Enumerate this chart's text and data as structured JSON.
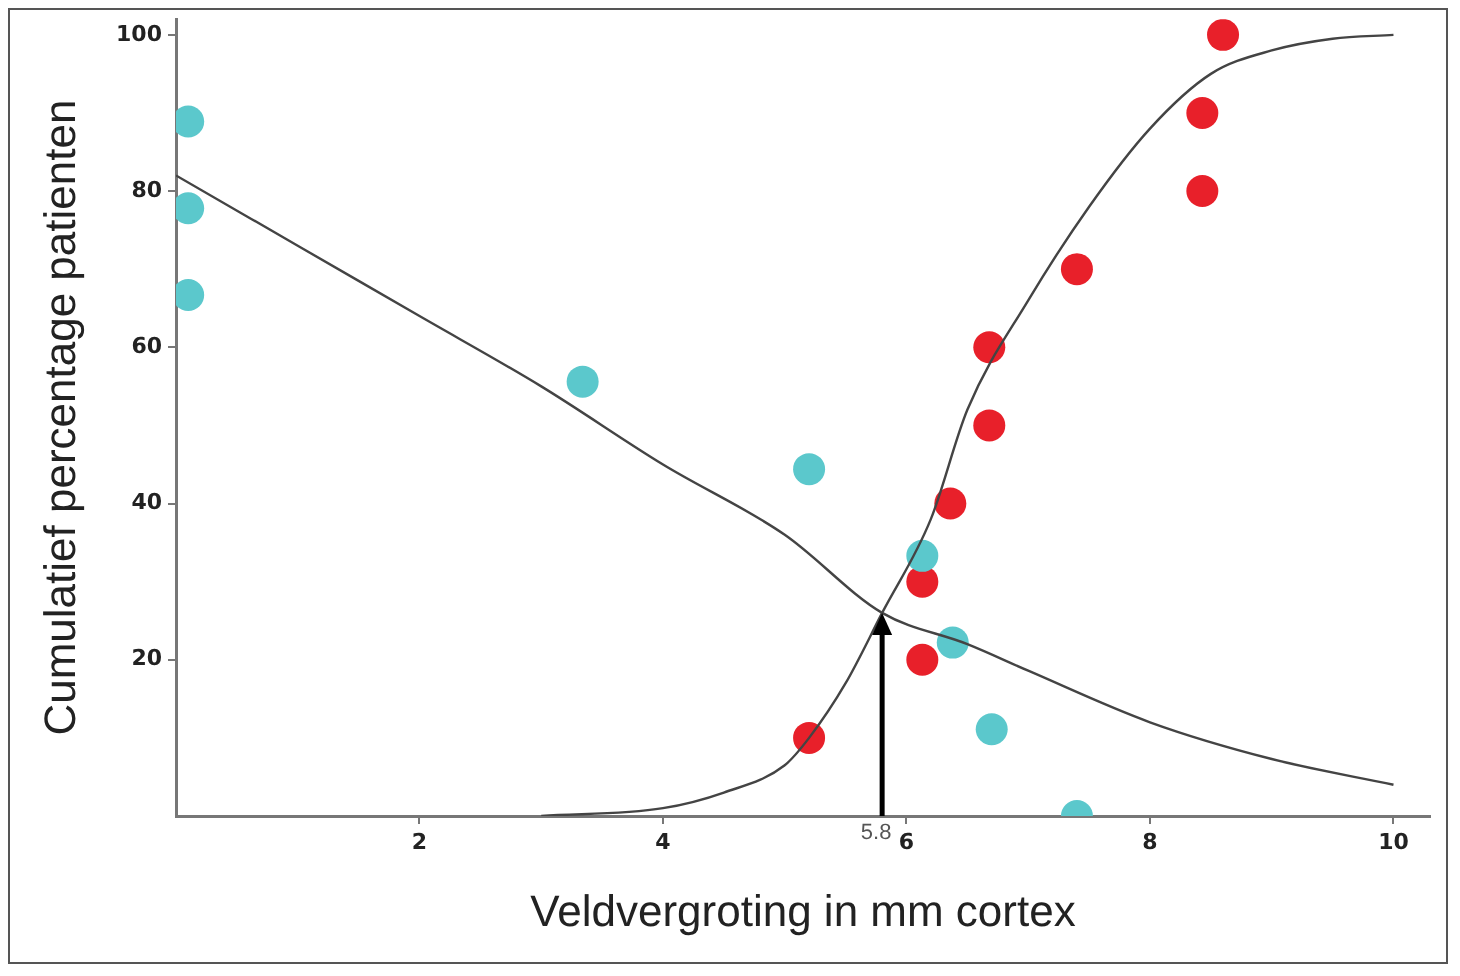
{
  "chart_data": {
    "type": "scatter",
    "xlabel": "Veldvergroting in mm cortex",
    "ylabel": "Cumulatief percentage patienten",
    "xlim": [
      0,
      10.3
    ],
    "xticks": [
      2,
      4,
      6,
      8,
      10
    ],
    "ylim": [
      0,
      102
    ],
    "yticks": [
      20,
      40,
      60,
      80,
      100
    ],
    "grid": false,
    "legend": false,
    "marker": "circle",
    "series": [
      {
        "color": "#5bc8cc",
        "x": [
          0.1,
          0.1,
          0.1,
          3.34,
          5.2,
          6.13,
          6.38,
          6.7,
          7.4
        ],
        "values": [
          88.9,
          77.8,
          66.7,
          55.6,
          44.4,
          33.3,
          22.2,
          11.1,
          0
        ]
      },
      {
        "color": "#e8202a",
        "x": [
          5.2,
          6.13,
          6.13,
          6.36,
          6.68,
          6.68,
          7.4,
          8.43,
          8.43,
          8.6
        ],
        "values": [
          10,
          20,
          30,
          40,
          50,
          60,
          70,
          80,
          90,
          100
        ]
      },
      {
        "type": "line",
        "color": "#444444",
        "marker": "none",
        "x": [
          0,
          1,
          2,
          3,
          4,
          5,
          5.8,
          6.5,
          7,
          8,
          9,
          10
        ],
        "values": [
          82,
          73,
          64,
          55,
          45,
          36,
          26,
          22,
          18.6,
          12,
          7.3,
          4
        ]
      },
      {
        "type": "line",
        "color": "#444444",
        "marker": "none",
        "x": [
          3,
          4,
          4.5,
          5,
          5.2,
          5.5,
          5.8,
          6.2,
          6.5,
          7,
          7.5,
          8,
          8.5,
          9,
          9.5,
          10
        ],
        "values": [
          0,
          1,
          3,
          6.5,
          10,
          17,
          26,
          38,
          52,
          66,
          78,
          88,
          95,
          98,
          99.5,
          100
        ]
      }
    ],
    "annotations": [
      {
        "text": "5.8",
        "x": 5.8,
        "y": 26
      }
    ]
  }
}
